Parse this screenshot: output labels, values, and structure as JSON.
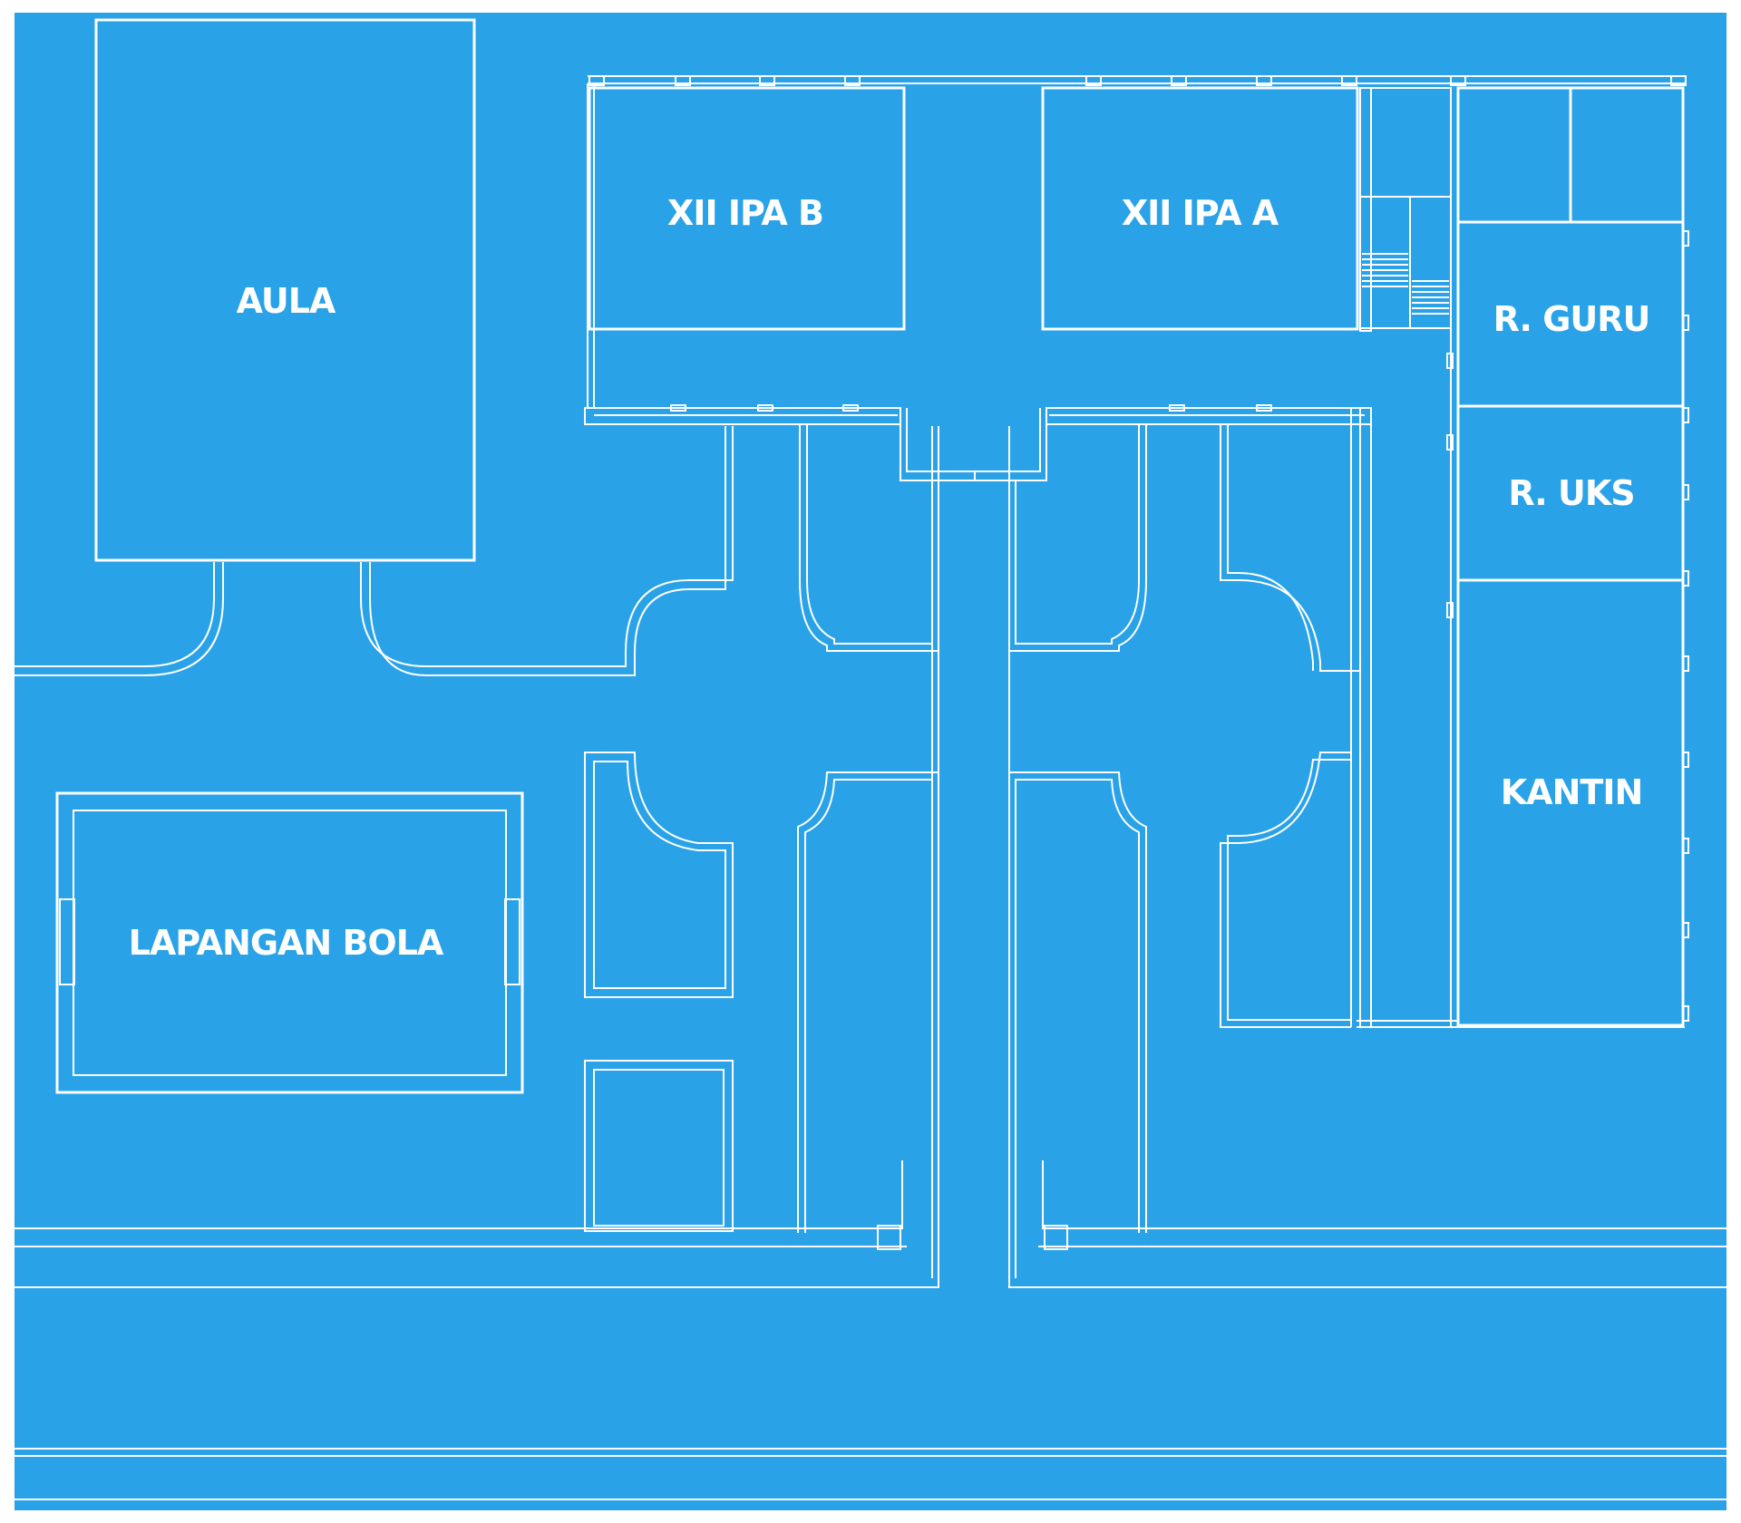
{
  "colors": {
    "background": "#29a2e8",
    "line": "#ffffff",
    "border": "#ffffff"
  },
  "rooms": {
    "aula": "AULA",
    "xii_ipa_b": "XII IPA B",
    "xii_ipa_a": "XII IPA A",
    "r_guru": "R. GURU",
    "r_uks": "R. UKS",
    "kantin": "KANTIN",
    "lapangan_bola": "LAPANGAN BOLA"
  }
}
